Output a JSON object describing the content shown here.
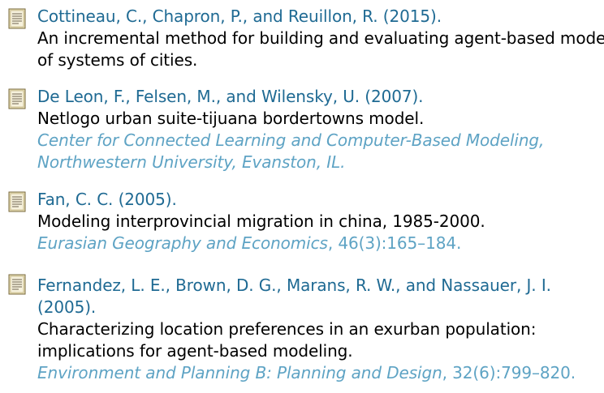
{
  "bibliography": [
    {
      "authors": "Cottineau, C., Chapron, P., and Reuillon, R. (2015).",
      "title_lines": [
        "An incremental method for building and evaluating agent-based models",
        "of systems of cities."
      ],
      "venue_lines": []
    },
    {
      "authors": "De Leon, F., Felsen, M., and Wilensky, U. (2007).",
      "title_lines": [
        "Netlogo urban suite-tijuana bordertowns model."
      ],
      "venue_lines": [
        {
          "italic": "Center for Connected Learning and Computer-Based Modeling,",
          "plain": ""
        },
        {
          "italic": "Northwestern University, Evanston, IL.",
          "plain": ""
        }
      ]
    },
    {
      "authors": "Fan, C. C. (2005).",
      "title_lines": [
        "Modeling interprovincial migration in china, 1985-2000."
      ],
      "venue_lines": [
        {
          "italic": "Eurasian Geography and Economics",
          "plain": ", 46(3):165–184."
        }
      ]
    },
    {
      "authors_lines": [
        "Fernandez, L. E., Brown, D. G., Marans, R. W., and Nassauer, J. I.",
        "(2005)."
      ],
      "title_lines": [
        "Characterizing location preferences in an exurban population:",
        "implications for agent-based modeling."
      ],
      "venue_lines": [
        {
          "italic": "Environment and Planning B: Planning and Design",
          "plain": ", 32(6):799–820."
        }
      ]
    }
  ],
  "icon": "document-icon",
  "colors": {
    "authors": "#1f6a93",
    "venue": "#5ea3c4",
    "title": "#000000"
  }
}
